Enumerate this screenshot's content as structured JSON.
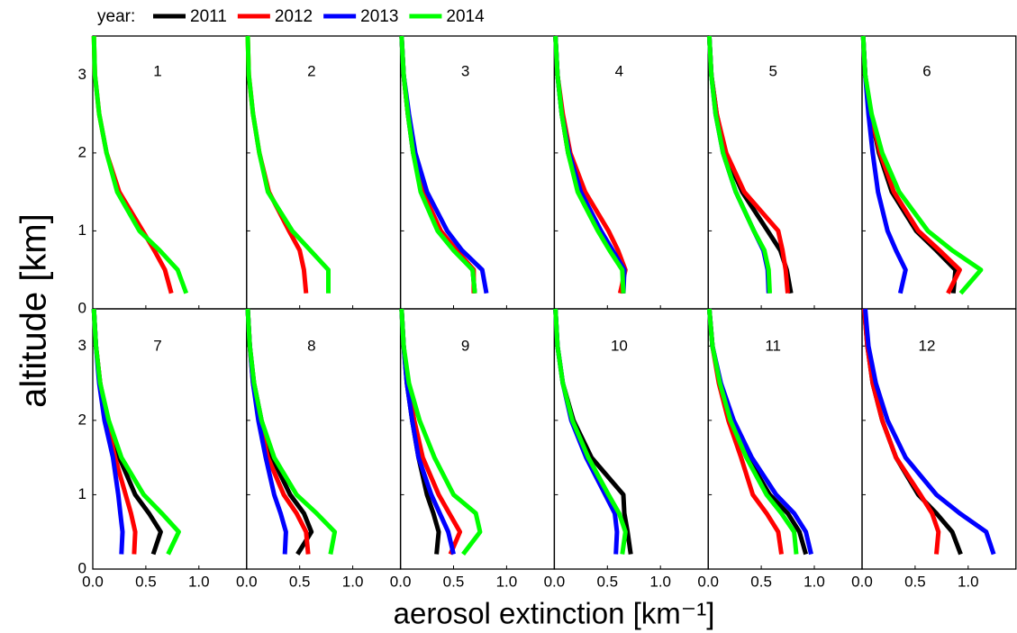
{
  "legend_title": "year:",
  "xlabel": "aerosol extinction [km⁻¹]",
  "ylabel": "altitude [km]",
  "chart_data": [
    {
      "type": "line",
      "title": "1",
      "y": [
        0.2,
        0.5,
        0.75,
        1.0,
        1.5,
        2.0,
        2.5,
        3.0,
        3.5
      ],
      "xlim": [
        0,
        1.45
      ],
      "xticks": [
        {
          "value": 0,
          "label": "0.0"
        },
        0.5,
        {
          "value": 1,
          "label": "1.0"
        }
      ],
      "ylim": [
        0,
        3.5
      ],
      "yticks": [
        0,
        1,
        2,
        3
      ],
      "series": [
        {
          "name": "2012",
          "color": "#ff0000",
          "values": [
            0.74,
            0.68,
            0.58,
            0.47,
            0.25,
            0.13,
            0.06,
            0.02,
            0.01
          ]
        },
        {
          "name": "2014",
          "color": "#00ff00",
          "values": [
            0.88,
            0.8,
            0.63,
            0.44,
            0.23,
            0.13,
            0.06,
            0.02,
            0.01
          ]
        }
      ]
    },
    {
      "type": "line",
      "title": "2",
      "y": [
        0.2,
        0.5,
        0.75,
        1.0,
        1.5,
        2.0,
        2.5,
        3.0,
        3.5
      ],
      "xlim": [
        0,
        1.45
      ],
      "xticks": [
        {
          "value": 0,
          "label": "0.0"
        },
        0.5,
        {
          "value": 1,
          "label": "1.0"
        }
      ],
      "ylim": [
        0,
        3.5
      ],
      "yticks": [
        0,
        1,
        2,
        3
      ],
      "series": [
        {
          "name": "2012",
          "color": "#ff0000",
          "values": [
            0.56,
            0.54,
            0.5,
            0.4,
            0.21,
            0.12,
            0.06,
            0.02,
            0.01
          ]
        },
        {
          "name": "2014",
          "color": "#00ff00",
          "values": [
            0.77,
            0.77,
            0.6,
            0.43,
            0.2,
            0.12,
            0.06,
            0.02,
            0.01
          ]
        }
      ]
    },
    {
      "type": "line",
      "title": "3",
      "y": [
        0.2,
        0.5,
        0.75,
        1.0,
        1.5,
        2.0,
        2.5,
        3.0,
        3.5
      ],
      "xlim": [
        0,
        1.45
      ],
      "xticks": [
        {
          "value": 0,
          "label": "0.0"
        },
        0.5,
        {
          "value": 1,
          "label": "1.0"
        }
      ],
      "ylim": [
        0,
        3.5
      ],
      "yticks": [
        0,
        1,
        2,
        3
      ],
      "series": [
        {
          "name": "2011",
          "color": "#000000",
          "values": [
            0.7,
            0.68,
            0.51,
            0.36,
            0.2,
            0.12,
            0.07,
            0.03,
            0.01
          ]
        },
        {
          "name": "2012",
          "color": "#ff0000",
          "values": [
            0.69,
            0.69,
            0.53,
            0.38,
            0.21,
            0.13,
            0.07,
            0.03,
            0.01
          ]
        },
        {
          "name": "2013",
          "color": "#0000ff",
          "values": [
            0.81,
            0.77,
            0.58,
            0.44,
            0.25,
            0.14,
            0.08,
            0.03,
            0.01
          ]
        },
        {
          "name": "2014",
          "color": "#00ff00",
          "values": [
            0.7,
            0.68,
            0.5,
            0.35,
            0.19,
            0.12,
            0.07,
            0.03,
            0.01
          ]
        }
      ]
    },
    {
      "type": "line",
      "title": "4",
      "y": [
        0.2,
        0.5,
        0.75,
        1.0,
        1.5,
        2.0,
        2.5,
        3.0,
        3.5
      ],
      "xlim": [
        0,
        1.45
      ],
      "xticks": [
        {
          "value": 0,
          "label": "0.0"
        },
        0.5,
        {
          "value": 1,
          "label": "1.0"
        }
      ],
      "ylim": [
        0,
        3.5
      ],
      "yticks": [
        0,
        1,
        2,
        3
      ],
      "series": [
        {
          "name": "2011",
          "color": "#000000",
          "values": [
            0.64,
            0.65,
            0.53,
            0.42,
            0.23,
            0.13,
            0.07,
            0.03,
            0.01
          ]
        },
        {
          "name": "2012",
          "color": "#ff0000",
          "values": [
            0.62,
            0.67,
            0.6,
            0.51,
            0.29,
            0.15,
            0.08,
            0.03,
            0.01
          ]
        },
        {
          "name": "2013",
          "color": "#0000ff",
          "values": [
            0.65,
            0.66,
            0.55,
            0.44,
            0.25,
            0.14,
            0.07,
            0.03,
            0.01
          ]
        },
        {
          "name": "2014",
          "color": "#00ff00",
          "values": [
            0.65,
            0.64,
            0.52,
            0.41,
            0.22,
            0.13,
            0.07,
            0.03,
            0.01
          ]
        }
      ]
    },
    {
      "type": "line",
      "title": "5",
      "y": [
        0.2,
        0.5,
        0.75,
        1.0,
        1.5,
        2.0,
        2.5,
        3.0,
        3.5
      ],
      "xlim": [
        0,
        1.45
      ],
      "xticks": [
        {
          "value": 0,
          "label": "0.0"
        },
        0.5,
        {
          "value": 1,
          "label": "1.0"
        }
      ],
      "ylim": [
        0,
        3.5
      ],
      "yticks": [
        0,
        1,
        2,
        3
      ],
      "series": [
        {
          "name": "2011",
          "color": "#000000",
          "values": [
            0.78,
            0.74,
            0.68,
            0.56,
            0.32,
            0.16,
            0.08,
            0.03,
            0.01
          ]
        },
        {
          "name": "2012",
          "color": "#ff0000",
          "values": [
            0.75,
            0.73,
            0.7,
            0.66,
            0.34,
            0.17,
            0.08,
            0.03,
            0.01
          ]
        },
        {
          "name": "2013",
          "color": "#0000ff",
          "values": [
            0.57,
            0.56,
            0.52,
            0.43,
            0.26,
            0.14,
            0.07,
            0.03,
            0.01
          ]
        },
        {
          "name": "2014",
          "color": "#00ff00",
          "values": [
            0.58,
            0.57,
            0.53,
            0.43,
            0.26,
            0.14,
            0.07,
            0.03,
            0.01
          ]
        }
      ]
    },
    {
      "type": "line",
      "title": "6",
      "y": [
        0.2,
        0.5,
        0.75,
        1.0,
        1.5,
        2.0,
        2.5,
        3.0,
        3.5
      ],
      "xlim": [
        0,
        1.45
      ],
      "xticks": [
        {
          "value": 0,
          "label": "0.0"
        },
        0.5,
        {
          "value": 1,
          "label": "1.0"
        }
      ],
      "ylim": [
        0,
        3.5
      ],
      "yticks": [
        0,
        1,
        2,
        3
      ],
      "series": [
        {
          "name": "2011",
          "color": "#000000",
          "values": [
            0.86,
            0.88,
            0.7,
            0.51,
            0.28,
            0.16,
            0.08,
            0.03,
            0.01
          ]
        },
        {
          "name": "2012",
          "color": "#ff0000",
          "values": [
            0.81,
            0.92,
            0.73,
            0.53,
            0.3,
            0.17,
            0.08,
            0.03,
            0.01
          ]
        },
        {
          "name": "2013",
          "color": "#0000ff",
          "values": [
            0.36,
            0.41,
            0.32,
            0.24,
            0.15,
            0.1,
            0.06,
            0.03,
            0.01
          ]
        },
        {
          "name": "2014",
          "color": "#00ff00",
          "values": [
            0.93,
            1.12,
            0.85,
            0.62,
            0.35,
            0.19,
            0.09,
            0.03,
            0.01
          ]
        }
      ]
    },
    {
      "type": "line",
      "title": "7",
      "y": [
        0.2,
        0.5,
        0.75,
        1.0,
        1.5,
        2.0,
        2.5,
        3.0,
        3.5
      ],
      "xlim": [
        0,
        1.45
      ],
      "xticks": [
        {
          "value": 0,
          "label": "0.0"
        },
        0.5,
        {
          "value": 1,
          "label": "1.0"
        }
      ],
      "ylim": [
        0,
        3.5
      ],
      "yticks": [
        0,
        1,
        2,
        3
      ],
      "series": [
        {
          "name": "2011",
          "color": "#000000",
          "values": [
            0.57,
            0.64,
            0.53,
            0.4,
            0.25,
            0.14,
            0.07,
            0.03,
            0.01
          ]
        },
        {
          "name": "2012",
          "color": "#ff0000",
          "values": [
            0.39,
            0.4,
            0.36,
            0.31,
            0.21,
            0.13,
            0.07,
            0.03,
            0.01
          ]
        },
        {
          "name": "2013",
          "color": "#0000ff",
          "values": [
            0.27,
            0.28,
            0.26,
            0.24,
            0.19,
            0.11,
            0.06,
            0.03,
            0.01
          ]
        },
        {
          "name": "2014",
          "color": "#00ff00",
          "values": [
            0.71,
            0.81,
            0.65,
            0.48,
            0.27,
            0.15,
            0.07,
            0.03,
            0.01
          ]
        }
      ]
    },
    {
      "type": "line",
      "title": "8",
      "y": [
        0.2,
        0.5,
        0.75,
        1.0,
        1.5,
        2.0,
        2.5,
        3.0,
        3.5
      ],
      "xlim": [
        0,
        1.45
      ],
      "xticks": [
        {
          "value": 0,
          "label": "0.0"
        },
        0.5,
        {
          "value": 1,
          "label": "1.0"
        }
      ],
      "ylim": [
        0,
        3.5
      ],
      "yticks": [
        0,
        1,
        2,
        3
      ],
      "series": [
        {
          "name": "2011",
          "color": "#000000",
          "values": [
            0.48,
            0.61,
            0.54,
            0.41,
            0.24,
            0.14,
            0.07,
            0.03,
            0.01
          ]
        },
        {
          "name": "2012",
          "color": "#ff0000",
          "values": [
            0.58,
            0.56,
            0.47,
            0.35,
            0.2,
            0.12,
            0.06,
            0.03,
            0.01
          ]
        },
        {
          "name": "2013",
          "color": "#0000ff",
          "values": [
            0.36,
            0.37,
            0.32,
            0.26,
            0.18,
            0.11,
            0.06,
            0.03,
            0.01
          ]
        },
        {
          "name": "2014",
          "color": "#00ff00",
          "values": [
            0.79,
            0.83,
            0.66,
            0.47,
            0.26,
            0.14,
            0.07,
            0.03,
            0.01
          ]
        }
      ]
    },
    {
      "type": "line",
      "title": "9",
      "y": [
        0.2,
        0.5,
        0.75,
        1.0,
        1.5,
        2.0,
        2.5,
        3.0,
        3.5
      ],
      "xlim": [
        0,
        1.45
      ],
      "xticks": [
        {
          "value": 0,
          "label": "0.0"
        },
        0.5,
        {
          "value": 1,
          "label": "1.0"
        }
      ],
      "ylim": [
        0,
        3.5
      ],
      "yticks": [
        0,
        1,
        2,
        3
      ],
      "series": [
        {
          "name": "2011",
          "color": "#000000",
          "values": [
            0.34,
            0.36,
            0.31,
            0.25,
            0.17,
            0.11,
            0.06,
            0.03,
            0.01
          ]
        },
        {
          "name": "2012",
          "color": "#ff0000",
          "values": [
            0.47,
            0.56,
            0.46,
            0.36,
            0.21,
            0.13,
            0.07,
            0.03,
            0.01
          ]
        },
        {
          "name": "2013",
          "color": "#0000ff",
          "values": [
            0.5,
            0.45,
            0.37,
            0.29,
            0.17,
            0.11,
            0.06,
            0.03,
            0.01
          ]
        },
        {
          "name": "2014",
          "color": "#00ff00",
          "values": [
            0.59,
            0.75,
            0.71,
            0.5,
            0.32,
            0.18,
            0.08,
            0.03,
            0.01
          ]
        }
      ]
    },
    {
      "type": "line",
      "title": "10",
      "y": [
        0.2,
        0.5,
        0.75,
        1.0,
        1.5,
        2.0,
        2.5,
        3.0,
        3.5
      ],
      "xlim": [
        0,
        1.45
      ],
      "xticks": [
        {
          "value": 0,
          "label": "0.0"
        },
        0.5,
        {
          "value": 1,
          "label": "1.0"
        }
      ],
      "ylim": [
        0,
        3.5
      ],
      "yticks": [
        0,
        1,
        2,
        3
      ],
      "series": [
        {
          "name": "2011",
          "color": "#000000",
          "values": [
            0.72,
            0.69,
            0.66,
            0.65,
            0.35,
            0.18,
            0.08,
            0.03,
            0.01
          ]
        },
        {
          "name": "2013",
          "color": "#0000ff",
          "values": [
            0.58,
            0.59,
            0.57,
            0.48,
            0.3,
            0.16,
            0.08,
            0.03,
            0.01
          ]
        },
        {
          "name": "2014",
          "color": "#00ff00",
          "values": [
            0.64,
            0.67,
            0.61,
            0.51,
            0.32,
            0.17,
            0.08,
            0.03,
            0.01
          ]
        }
      ]
    },
    {
      "type": "line",
      "title": "11",
      "y": [
        0.2,
        0.5,
        0.75,
        1.0,
        1.5,
        2.0,
        2.5,
        3.0,
        3.5
      ],
      "xlim": [
        0,
        1.45
      ],
      "xticks": [
        {
          "value": 0,
          "label": "0.0"
        },
        0.5,
        {
          "value": 1,
          "label": "1.0"
        }
      ],
      "ylim": [
        0,
        3.5
      ],
      "yticks": [
        0,
        1,
        2,
        3
      ],
      "series": [
        {
          "name": "2011",
          "color": "#000000",
          "values": [
            0.92,
            0.86,
            0.75,
            0.58,
            0.37,
            0.22,
            0.11,
            0.04,
            0.01
          ]
        },
        {
          "name": "2012",
          "color": "#ff0000",
          "values": [
            0.69,
            0.66,
            0.55,
            0.42,
            0.31,
            0.19,
            0.1,
            0.04,
            0.01
          ]
        },
        {
          "name": "2013",
          "color": "#0000ff",
          "values": [
            0.97,
            0.92,
            0.81,
            0.64,
            0.41,
            0.24,
            0.12,
            0.04,
            0.01
          ]
        },
        {
          "name": "2014",
          "color": "#00ff00",
          "values": [
            0.83,
            0.81,
            0.69,
            0.55,
            0.36,
            0.21,
            0.11,
            0.04,
            0.01
          ]
        }
      ]
    },
    {
      "type": "line",
      "title": "12",
      "y": [
        0.2,
        0.5,
        0.75,
        1.0,
        1.5,
        2.0,
        2.5,
        3.0,
        3.5
      ],
      "xlim": [
        0,
        1.45
      ],
      "xticks": [
        {
          "value": 0,
          "label": "0.0"
        },
        0.5,
        {
          "value": 1,
          "label": "1.0"
        }
      ],
      "ylim": [
        0,
        3.5
      ],
      "yticks": [
        0,
        1,
        2,
        3
      ],
      "series": [
        {
          "name": "2011",
          "color": "#000000",
          "values": [
            0.93,
            0.85,
            0.7,
            0.53,
            0.32,
            0.19,
            0.1,
            0.05,
            0.02
          ]
        },
        {
          "name": "2012",
          "color": "#ff0000",
          "values": [
            0.7,
            0.72,
            0.66,
            0.55,
            0.32,
            0.19,
            0.1,
            0.05,
            0.02
          ]
        },
        {
          "name": "2013",
          "color": "#0000ff",
          "values": [
            1.24,
            1.17,
            0.92,
            0.7,
            0.41,
            0.24,
            0.13,
            0.06,
            0.03
          ]
        }
      ]
    }
  ]
}
